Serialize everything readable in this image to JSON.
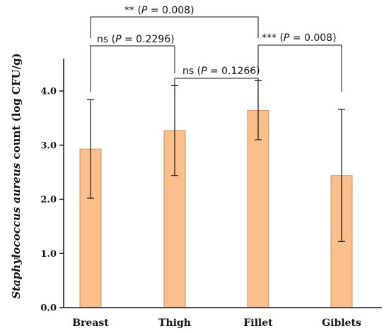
{
  "chart_data": {
    "type": "bar",
    "categories": [
      "Breast",
      "Thigh",
      "Fillet",
      "Giblets"
    ],
    "values": [
      2.93,
      3.27,
      3.64,
      2.44
    ],
    "error_low": [
      2.02,
      2.44,
      3.1,
      1.22
    ],
    "error_high": [
      3.84,
      4.1,
      4.19,
      3.66
    ],
    "ylim": [
      0,
      4.6
    ],
    "yticks": [
      "0.0",
      "1.0",
      "2.0",
      "3.0",
      "4.0"
    ],
    "ytick_values": [
      0,
      1,
      2,
      3,
      4
    ],
    "ylabel": {
      "italic_part": "Staphylococcus aureus",
      "rest": " count (log CFU/g)"
    },
    "xlabel": "",
    "grid": false,
    "bar_color": "#fbbf8c",
    "bar_edge_color": "#c47a3c",
    "comparisons": [
      {
        "from": 0,
        "to": 2,
        "sig": "**",
        "p_prefix": " (",
        "p_var": "P",
        "p_rest": " = 0.008)"
      },
      {
        "from": 0,
        "to": 1,
        "sig": "ns",
        "p_prefix": " (",
        "p_var": "P",
        "p_rest": " = 0.2296)"
      },
      {
        "from": 1,
        "to": 2,
        "sig": "ns",
        "p_prefix": " (",
        "p_var": "P",
        "p_rest": " = 0.1266)"
      },
      {
        "from": 2,
        "to": 3,
        "sig": "***",
        "p_prefix": "  (",
        "p_var": "P",
        "p_rest": " = 0.008)"
      }
    ]
  }
}
